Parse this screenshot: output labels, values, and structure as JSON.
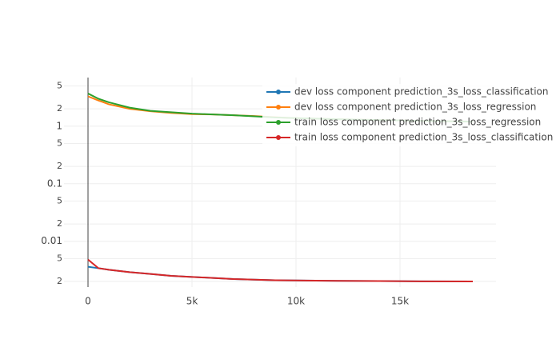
{
  "chart_data": {
    "type": "line",
    "log_y": true,
    "grid": true,
    "legend": "top right",
    "x": [
      0,
      500,
      1000,
      2000,
      3000,
      4000,
      5000,
      6000,
      7000,
      8000,
      9000,
      10000,
      12000,
      14000,
      16000,
      18500
    ],
    "series": [
      {
        "name": "dev loss component prediction_3s_loss_classification",
        "color": "#1f77b4",
        "values": [
          0.0036,
          0.0034,
          0.0032,
          0.0029,
          0.0027,
          0.0025,
          0.0024,
          0.0023,
          0.0022,
          0.00215,
          0.0021,
          0.00208,
          0.00205,
          0.00203,
          0.00201,
          0.002
        ]
      },
      {
        "name": "dev loss component prediction_3s_loss_regression",
        "color": "#ff7f0e",
        "values": [
          3.3,
          2.8,
          2.4,
          2.0,
          1.82,
          1.7,
          1.62,
          1.6,
          1.55,
          1.5,
          1.43,
          1.38,
          1.32,
          1.28,
          1.24,
          1.2
        ]
      },
      {
        "name": "train loss component prediction_3s_loss_regression",
        "color": "#2ca02c",
        "values": [
          3.7,
          3.0,
          2.6,
          2.1,
          1.85,
          1.75,
          1.65,
          1.6,
          1.55,
          1.48,
          1.42,
          1.38,
          1.32,
          1.28,
          1.24,
          1.2
        ]
      },
      {
        "name": "train loss component prediction_3s_loss_classification",
        "color": "#d62728",
        "values": [
          0.0048,
          0.0034,
          0.0032,
          0.0029,
          0.0027,
          0.0025,
          0.0024,
          0.0023,
          0.0022,
          0.00215,
          0.0021,
          0.00208,
          0.00205,
          0.00203,
          0.00201,
          0.002
        ]
      }
    ],
    "xlim": [
      -1154,
      19615
    ],
    "xticks": [
      0,
      {
        "value": 5000,
        "label": "5k"
      },
      {
        "value": 10000,
        "label": "10k"
      },
      {
        "value": 15000,
        "label": "15k"
      }
    ],
    "ylim": [
      0.0016,
      7
    ],
    "yticks": [
      5,
      2,
      1,
      {
        "value": 0.5,
        "label": "5"
      },
      {
        "value": 0.2,
        "label": "2"
      },
      0.1,
      {
        "value": 0.05,
        "label": "5"
      },
      {
        "value": 0.02,
        "label": "2"
      },
      0.01,
      {
        "value": 0.005,
        "label": "5"
      },
      {
        "value": 0.002,
        "label": "2"
      }
    ]
  }
}
